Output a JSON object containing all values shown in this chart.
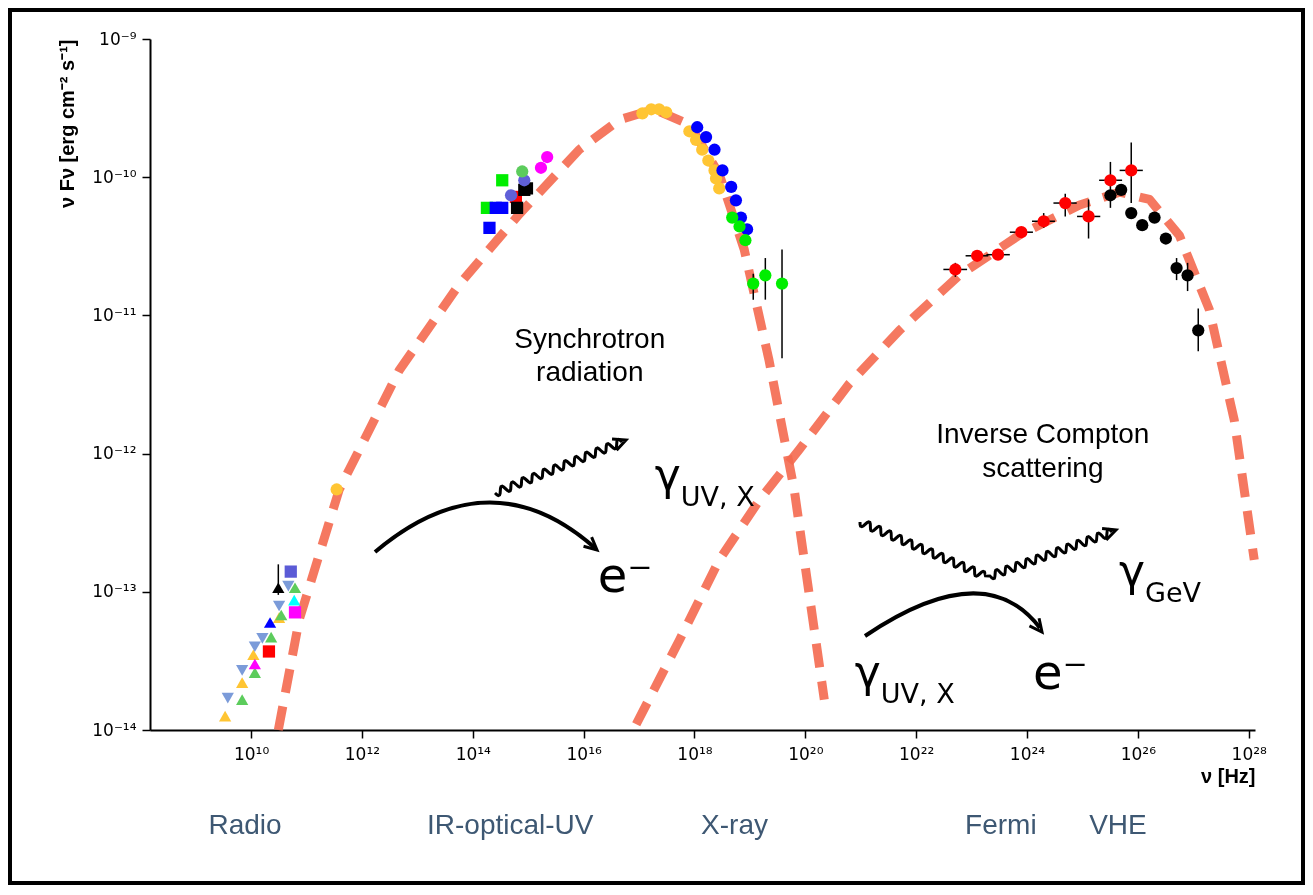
{
  "chart_data": {
    "type": "scatter",
    "xlabel": "ν [Hz]",
    "ylabel": "ν Fν [erg cm⁻² s⁻¹]",
    "log": "xy",
    "xlim": [
      150000000.0,
      1.3e+28
    ],
    "ylim": [
      1e-14,
      1e-09
    ],
    "xticks": [
      {
        "value": 10000000000.0,
        "label": "10¹⁰"
      },
      {
        "value": 1000000000000.0,
        "label": "10¹²"
      },
      {
        "value": 100000000000000.0,
        "label": "10¹⁴"
      },
      {
        "value": 1e+16,
        "label": "10¹⁶"
      },
      {
        "value": 1e+18,
        "label": "10¹⁸"
      },
      {
        "value": 1e+20,
        "label": "10²⁰"
      },
      {
        "value": 1e+22,
        "label": "10²²"
      },
      {
        "value": 1e+24,
        "label": "10²⁴"
      },
      {
        "value": 1e+26,
        "label": "10²⁶"
      },
      {
        "value": 1e+28,
        "label": "10²⁸"
      }
    ],
    "yticks": [
      {
        "value": 1e-14,
        "label": "10⁻¹⁴"
      },
      {
        "value": 1e-13,
        "label": "10⁻¹³"
      },
      {
        "value": 1e-12,
        "label": "10⁻¹²"
      },
      {
        "value": 1e-11,
        "label": "10⁻¹¹"
      },
      {
        "value": 1e-10,
        "label": "10⁻¹⁰"
      },
      {
        "value": 1e-09,
        "label": "10⁻⁹"
      }
    ],
    "annotations": [
      "Synchrotron\nradiation",
      "Inverse Compton\nscattering",
      "γ$_{UV, X}$",
      "e⁻",
      "γ$_{GeV}$",
      "γ$_{UV, X}$",
      "e⁻",
      "Radio",
      "IR-optical-UV",
      "X-ray",
      "Fermi",
      "VHE"
    ],
    "series": [
      {
        "type": "line",
        "line_style": "dashed",
        "color": "#f4694f",
        "x": [
          31000000000.0,
          74000000000.0,
          390000000000.0,
          4700000000000.0,
          56000000000000.0,
          690000000000000.0,
          8300000000000000.0,
          4.4e+16,
          1.86e+17,
          8.1e+17,
          2.8e+18,
          7.9e+18,
          2.2e+19,
          6.3e+19,
          2.2e+20
        ],
        "values": [
          1e-14,
          6.3e-14,
          5.5e-13,
          4e-12,
          1.66e-11,
          5.4e-11,
          1.58e-10,
          2.6e-10,
          3.1e-10,
          2.4e-10,
          1.05e-10,
          3e-11,
          4.8e-12,
          5.5e-13,
          1.66e-14
        ]
      },
      {
        "type": "line",
        "line_style": "dashed",
        "color": "#f4694f",
        "x": [
          8.9e+16,
          5.4e+17,
          2.8e+18,
          1.48e+19,
          7.8e+19,
          6.2e+20,
          5e+21,
          6e+22,
          7.2e+23,
          8.9e+24,
          4.7e+25,
          1.62e+26,
          5.6e+26,
          1.95e+27,
          5.5e+27,
          1.26e+28
        ],
        "values": [
          1.1e-14,
          4.5e-14,
          1.7e-13,
          4.6e-13,
          1.07e-12,
          3.2e-12,
          7.8e-12,
          1.95e-11,
          3.8e-11,
          6.3e-11,
          7.8e-11,
          6.9e-11,
          3.8e-11,
          1.1e-11,
          1.74e-12,
          1.7e-13
        ]
      },
      {
        "marker": "triangle",
        "color": "#ffc533",
        "x": [
          3400000000.0,
          6900000000.0,
          11000000000.0,
          32000000000.0
        ],
        "values": [
          1.26e-14,
          2.2e-14,
          3.5e-14,
          6.5e-14
        ]
      },
      {
        "marker": "triangle-down",
        "color": "#7b9bd9",
        "x": [
          3800000000.0,
          6900000000.0,
          11700000000.0,
          16000000000.0,
          32000000000.0,
          47000000000.0
        ],
        "values": [
          1.7e-14,
          2.7e-14,
          4e-14,
          4.6e-14,
          7.9e-14,
          1.1e-13
        ]
      },
      {
        "marker": "triangle",
        "color": "#5ccc5c",
        "x": [
          6900000000.0,
          11700000000.0,
          23000000000.0,
          35000000000.0,
          62000000000.0
        ],
        "values": [
          1.66e-14,
          2.6e-14,
          4.7e-14,
          6.8e-14,
          1.07e-13
        ]
      },
      {
        "marker": "triangle",
        "color": "#ff00ff",
        "x": [
          11700000000.0
        ],
        "values": [
          3e-14
        ]
      },
      {
        "marker": "triangle",
        "color": "#0000ff",
        "x": [
          22000000000.0
        ],
        "values": [
          6e-14
        ]
      },
      {
        "marker": "triangle",
        "color": "#000000",
        "x": [
          31000000000.0
        ],
        "values": [
          1.07e-13
        ],
        "errors": [
          [
            9.5e-14,
            1.58e-13
          ]
        ]
      },
      {
        "marker": "triangle",
        "color": "#00ffff",
        "x": [
          60000000000.0
        ],
        "values": [
          8.7e-14
        ]
      },
      {
        "marker": "square",
        "color": "#ff0000",
        "x": [
          21000000000.0,
          600000000000000.0
        ],
        "values": [
          3.7e-14,
          7.2e-11
        ]
      },
      {
        "marker": "square",
        "color": "#ff00ff",
        "x": [
          62000000000.0
        ],
        "values": [
          7.1e-14
        ]
      },
      {
        "marker": "square",
        "color": "#5b5bd6",
        "x": [
          52000000000.0
        ],
        "values": [
          1.4e-13
        ]
      },
      {
        "marker": "square",
        "color": "#00ee00",
        "x": [
          340000000000000.0,
          180000000000000.0
        ],
        "values": [
          9.5e-11,
          6e-11
        ]
      },
      {
        "marker": "square",
        "color": "#0000ff",
        "x": [
          200000000000000.0,
          260000000000000.0,
          340000000000000.0
        ],
        "values": [
          4.3e-11,
          6e-11,
          6e-11
        ]
      },
      {
        "marker": "square",
        "color": "#000000",
        "x": [
          630000000000000.0,
          850000000000000.0,
          950000000000000.0
        ],
        "values": [
          6e-11,
          8.1e-11,
          8.3e-11
        ]
      },
      {
        "marker": "circle",
        "color": "#6060d8",
        "x": [
          850000000000000.0,
          490000000000000.0
        ],
        "values": [
          9.5e-11,
          7.4e-11
        ]
      },
      {
        "marker": "circle",
        "color": "#5ccc5c",
        "x": [
          780000000000000.0
        ],
        "values": [
          1.1e-10
        ]
      },
      {
        "marker": "circle",
        "color": "#ff00ff",
        "x": [
          1700000000000000.0,
          2200000000000000.0
        ],
        "values": [
          1.17e-10,
          1.4e-10
        ]
      },
      {
        "marker": "circle",
        "color": "#ffc533",
        "x": [
          350000000000.0,
          1.15e+17,
          1.66e+17,
          2.3e+17,
          3.1e+17,
          8.1e+17,
          1.07e+18,
          1.38e+18,
          1.78e+18,
          2.3e+18,
          2.45e+18,
          2.8e+18
        ],
        "values": [
          5.5e-13,
          2.9e-10,
          3.1e-10,
          3.1e-10,
          2.95e-10,
          2.15e-10,
          1.86e-10,
          1.58e-10,
          1.32e-10,
          1.12e-10,
          9.8e-11,
          8.3e-11
        ]
      },
      {
        "marker": "circle",
        "color": "#0000ff",
        "x": [
          1.12e+18,
          1.62e+18,
          2.3e+18,
          3.2e+18,
          4.6e+18,
          5.6e+18,
          6.9e+18,
          8.9e+18
        ],
        "values": [
          2.3e-10,
          1.95e-10,
          1.58e-10,
          1.12e-10,
          8.5e-11,
          6.8e-11,
          5.1e-11,
          4.2e-11
        ]
      },
      {
        "marker": "circle",
        "color": "#00ee00",
        "x": [
          4.8e+18,
          6.5e+18,
          8.3e+18,
          1.15e+19,
          1.9e+19,
          3.8e+19
        ],
        "values": [
          5.1e-11,
          4.4e-11,
          3.5e-11,
          1.7e-11,
          1.95e-11,
          1.7e-11
        ],
        "errors": [
          null,
          null,
          null,
          [
            1.3e-11,
            2e-11
          ],
          [
            1.3e-11,
            2.6e-11
          ],
          [
            4.9e-12,
            3e-11
          ]
        ]
      },
      {
        "marker": "circle",
        "color": "#ff0000",
        "x": [
          5.1e+22,
          1.26e+23,
          3e+23,
          7.9e+23,
          2e+24,
          4.9e+24,
          1.29e+25,
          3.2e+25,
          7.6e+25
        ],
        "values": [
          2.15e-11,
          2.7e-11,
          2.75e-11,
          4e-11,
          4.8e-11,
          6.5e-11,
          5.2e-11,
          9.5e-11,
          1.12e-10
        ],
        "errors": [
          [
            1.9e-11,
            2.4e-11
          ],
          null,
          null,
          null,
          [
            4.3e-11,
            5.5e-11
          ],
          [
            5.2e-11,
            7.6e-11
          ],
          [
            3.6e-11,
            6.9e-11
          ],
          [
            6e-11,
            1.29e-10
          ],
          [
            6.5e-11,
            1.78e-10
          ]
        ],
        "xerrors": [
          [
            3.1e+22,
            8.3e+22
          ],
          [
            7.8e+22,
            2e+23
          ],
          [
            1.85e+23,
            4.9e+23
          ],
          [
            4.9e+23,
            1.28e+24
          ],
          [
            1.23e+24,
            3.2e+24
          ],
          [
            3e+24,
            7.9e+24
          ],
          [
            8e+24,
            2.1e+25
          ],
          [
            2e+25,
            5.2e+25
          ],
          [
            4.7e+25,
            1.23e+26
          ]
        ]
      },
      {
        "marker": "circle",
        "color": "#000000",
        "x": [
          3.2e+25,
          5e+25,
          7.6e+25,
          1.2e+26,
          2e+26,
          3.2e+26,
          5e+26,
          7.9e+26,
          1.23e+27
        ],
        "values": [
          7.4e-11,
          8.1e-11,
          5.5e-11,
          4.5e-11,
          5.1e-11,
          3.6e-11,
          2.2e-11,
          1.95e-11,
          7.8e-12
        ],
        "errors": [
          null,
          null,
          null,
          null,
          null,
          null,
          [
            1.8e-11,
            2.6e-11
          ],
          [
            1.5e-11,
            2.4e-11
          ],
          [
            5.5e-12,
            1.12e-11
          ]
        ]
      }
    ]
  }
}
